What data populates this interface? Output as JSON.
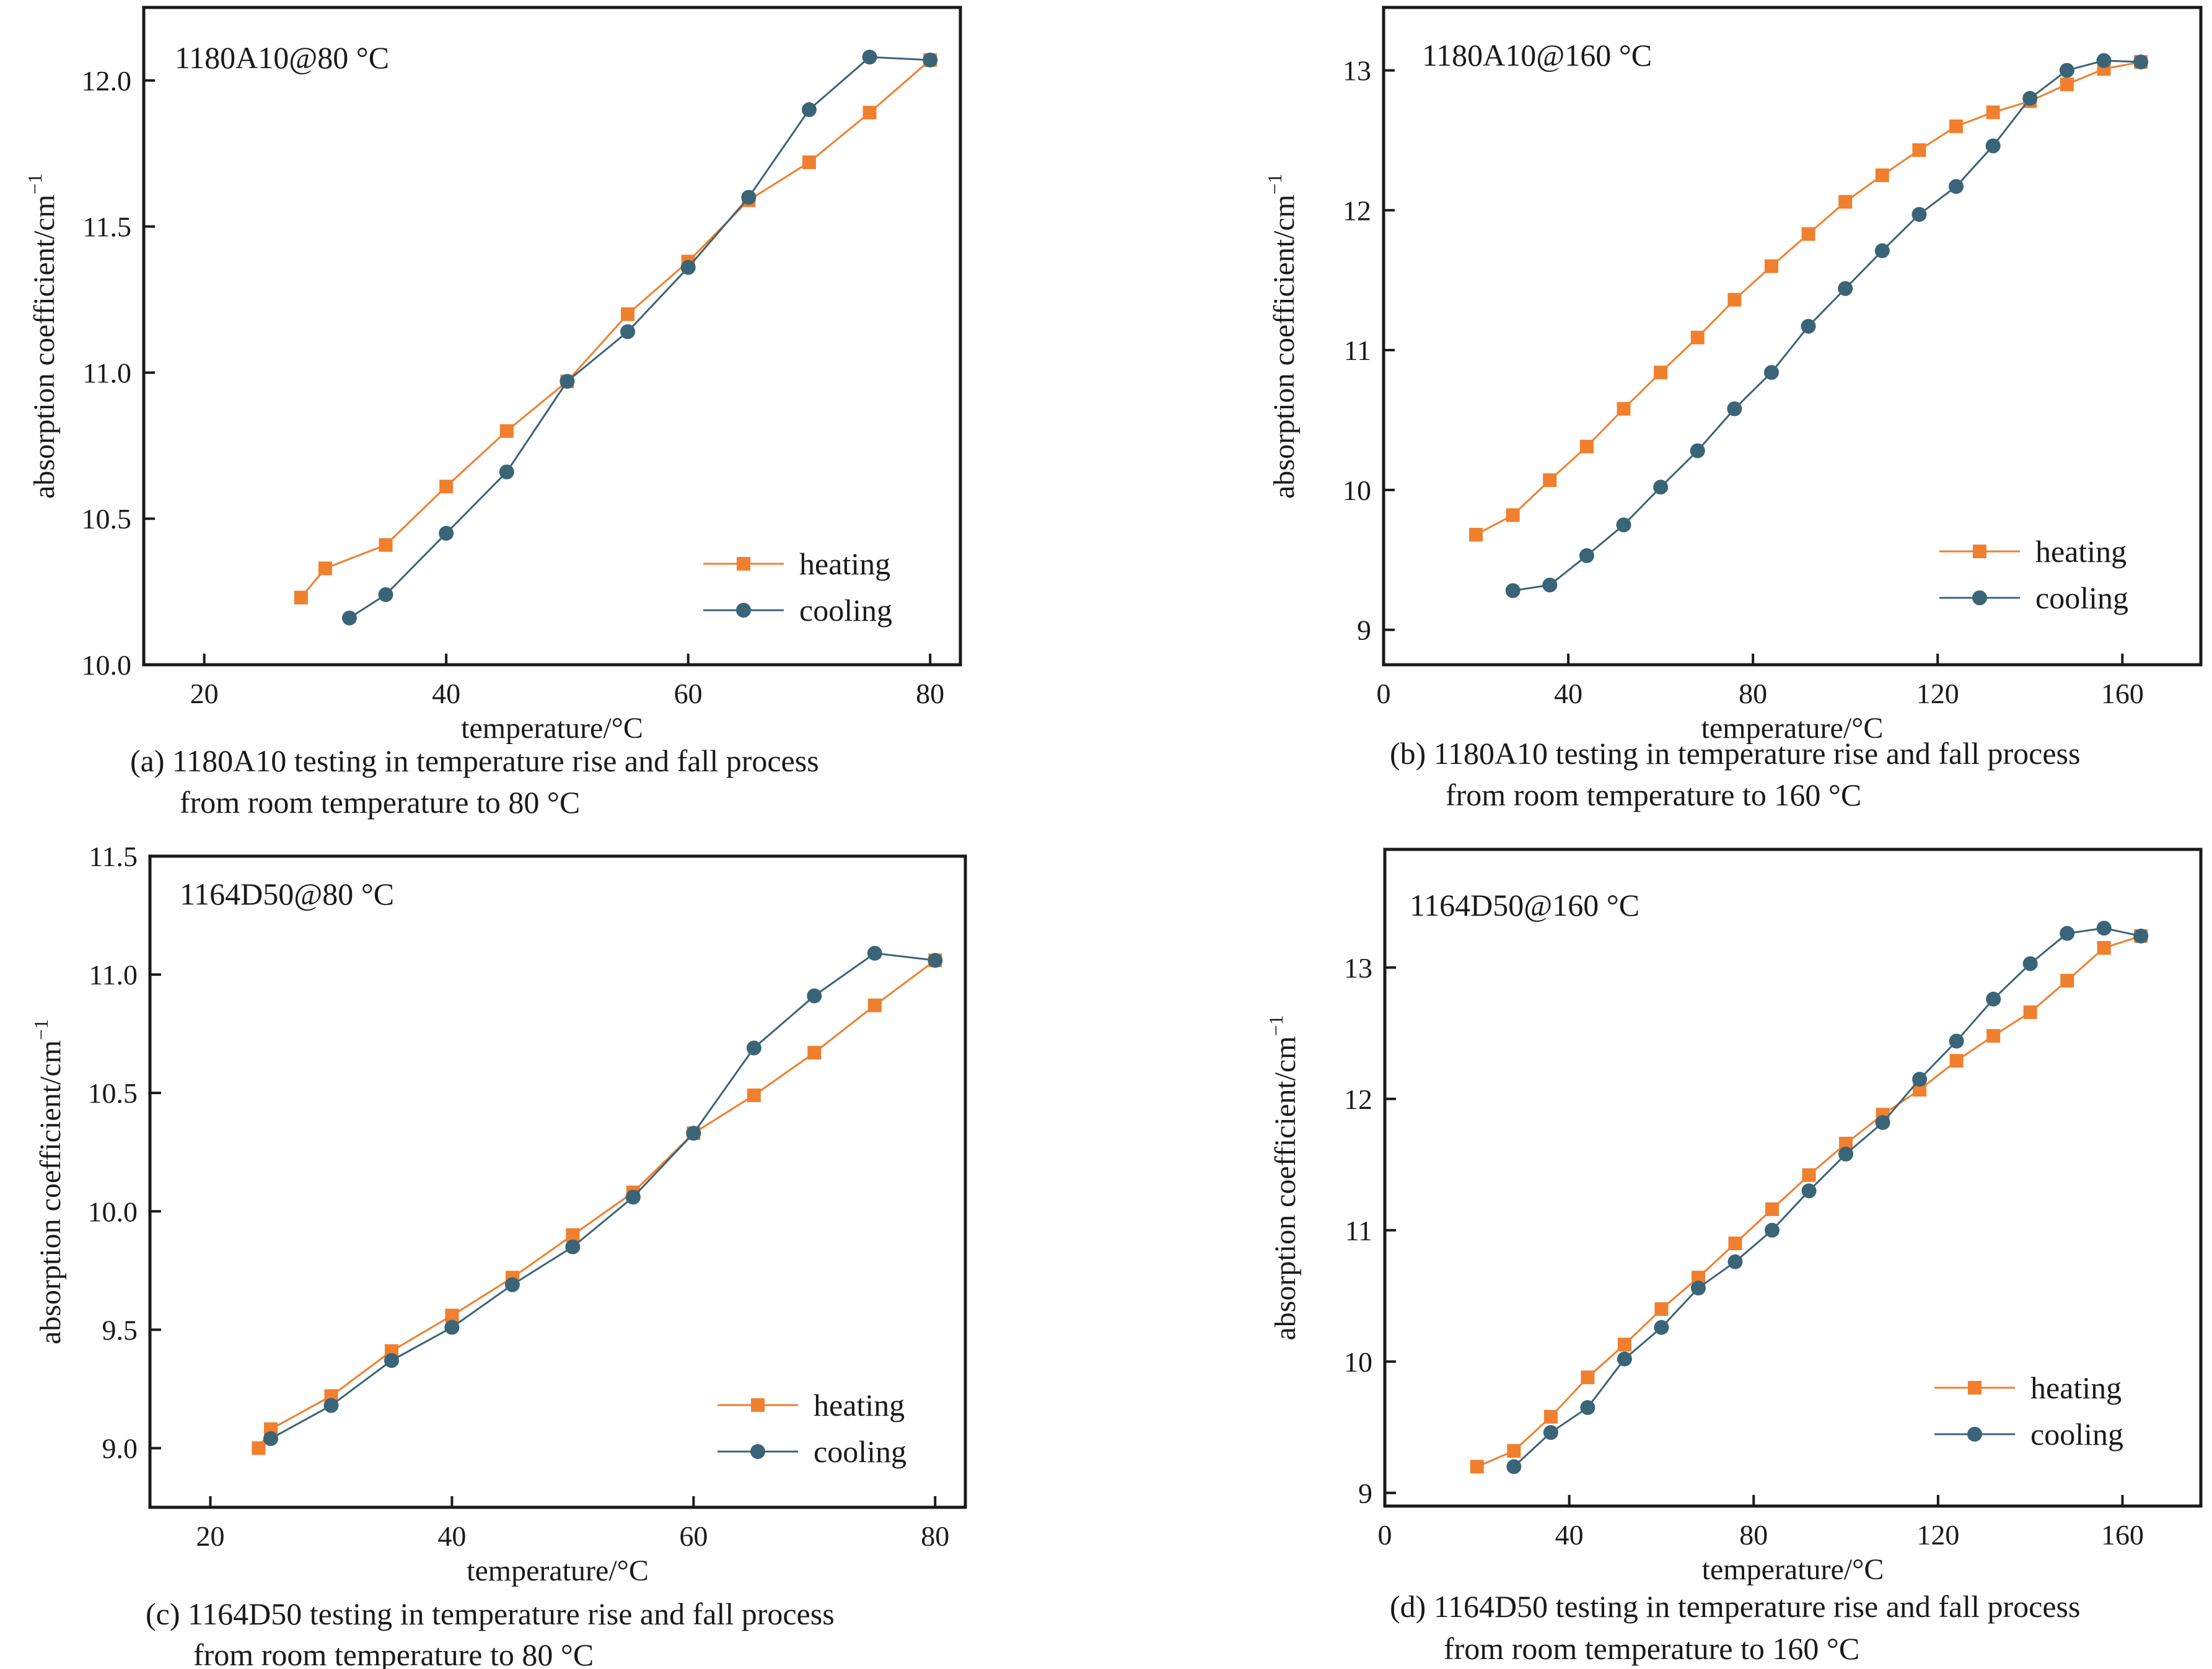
{
  "colors": {
    "heating": "#F07F2E",
    "cooling": "#3A6478",
    "axis": "#1a1a1a"
  },
  "chart_data": [
    {
      "type": "line",
      "label": "1180A10@80 °C",
      "xlabel": "temperature/°C",
      "ylabel": "absorption coefficient/cm",
      "ylabel_sup": "−1",
      "xlim": [
        15,
        82.5
      ],
      "ylim": [
        10.0,
        12.25
      ],
      "xticks": [
        20,
        40,
        60,
        80
      ],
      "xtick_labels": [
        "20",
        "40",
        "60",
        "80"
      ],
      "yticks": [
        10.0,
        10.5,
        11.0,
        11.5,
        12.0
      ],
      "ytick_labels": [
        "10.0",
        "10.5",
        "11.0",
        "11.5",
        "12.0"
      ],
      "legend_position": "bottom-right",
      "caption_line1": "(a) 1180A10 testing in temperature rise and fall process",
      "caption_line2": "from room temperature to 80 °C",
      "series": [
        {
          "name": "heating",
          "marker": "square",
          "x": [
            28,
            30,
            35,
            40,
            45,
            50,
            55,
            60,
            65,
            70,
            75,
            80
          ],
          "y": [
            10.23,
            10.33,
            10.41,
            10.61,
            10.8,
            10.97,
            11.2,
            11.38,
            11.59,
            11.72,
            11.89,
            12.07
          ]
        },
        {
          "name": "cooling",
          "marker": "circle",
          "x": [
            32,
            35,
            40,
            45,
            50,
            55,
            60,
            65,
            70,
            75,
            80
          ],
          "y": [
            10.16,
            10.24,
            10.45,
            10.66,
            10.97,
            11.14,
            11.36,
            11.6,
            11.9,
            12.08,
            12.07
          ]
        }
      ]
    },
    {
      "type": "line",
      "label": "1180A10@160 °C",
      "xlabel": "temperature/°C",
      "ylabel": "absorption coefficient/cm",
      "ylabel_sup": "−1",
      "xlim": [
        0,
        177
      ],
      "ylim": [
        8.75,
        13.45
      ],
      "xticks": [
        0,
        40,
        80,
        120,
        160
      ],
      "xtick_labels": [
        "0",
        "40",
        "80",
        "120",
        "160"
      ],
      "yticks": [
        9,
        10,
        11,
        12,
        13
      ],
      "ytick_labels": [
        "9",
        "10",
        "11",
        "12",
        "13"
      ],
      "legend_position": "bottom-right",
      "caption_line1": "(b) 1180A10 testing in temperature rise and fall process",
      "caption_line2": "from room temperature to 160 °C",
      "series": [
        {
          "name": "heating",
          "marker": "square",
          "x": [
            20,
            28,
            36,
            44,
            52,
            60,
            68,
            76,
            84,
            92,
            100,
            108,
            116,
            124,
            132,
            140,
            148,
            156,
            164
          ],
          "y": [
            9.68,
            9.82,
            10.07,
            10.31,
            10.58,
            10.84,
            11.09,
            11.36,
            11.6,
            11.83,
            12.06,
            12.25,
            12.43,
            12.6,
            12.7,
            12.78,
            12.9,
            13.01,
            13.06
          ]
        },
        {
          "name": "cooling",
          "marker": "circle",
          "x": [
            28,
            36,
            44,
            52,
            60,
            68,
            76,
            84,
            92,
            100,
            108,
            116,
            124,
            132,
            140,
            148,
            156,
            164
          ],
          "y": [
            9.28,
            9.32,
            9.53,
            9.75,
            10.02,
            10.28,
            10.58,
            10.84,
            11.17,
            11.44,
            11.71,
            11.97,
            12.17,
            12.46,
            12.8,
            13.0,
            13.07,
            13.06
          ]
        }
      ]
    },
    {
      "type": "line",
      "label": "1164D50@80 °C",
      "xlabel": "temperature/°C",
      "ylabel": "absorption coefficient/cm",
      "ylabel_sup": "−1",
      "xlim": [
        15,
        82.5
      ],
      "ylim": [
        8.75,
        11.5
      ],
      "xticks": [
        20,
        40,
        60,
        80
      ],
      "xtick_labels": [
        "20",
        "40",
        "60",
        "80"
      ],
      "yticks": [
        9.0,
        9.5,
        10.0,
        10.5,
        11.0,
        11.5
      ],
      "ytick_labels": [
        "9.0",
        "9.5",
        "10.0",
        "10.5",
        "11.0",
        "11.5"
      ],
      "legend_position": "bottom-right",
      "caption_line1": "(c) 1164D50 testing in temperature rise and fall process",
      "caption_line2": "from room temperature to 80 °C",
      "series": [
        {
          "name": "heating",
          "marker": "square",
          "x": [
            24,
            25,
            30,
            35,
            40,
            45,
            50,
            55,
            60,
            65,
            70,
            75,
            80
          ],
          "y": [
            9.0,
            9.08,
            9.22,
            9.41,
            9.56,
            9.72,
            9.9,
            10.08,
            10.33,
            10.49,
            10.67,
            10.87,
            11.06
          ]
        },
        {
          "name": "cooling",
          "marker": "circle",
          "x": [
            25,
            30,
            35,
            40,
            45,
            50,
            55,
            60,
            65,
            70,
            75,
            80
          ],
          "y": [
            9.04,
            9.18,
            9.37,
            9.51,
            9.69,
            9.85,
            10.06,
            10.33,
            10.69,
            10.91,
            11.09,
            11.06
          ]
        }
      ]
    },
    {
      "type": "line",
      "label": "1164D50@160 °C",
      "xlabel": "temperature/°C",
      "ylabel": "absorption coefficient/cm",
      "ylabel_sup": "−1",
      "xlim": [
        0,
        177
      ],
      "ylim": [
        8.9,
        13.9
      ],
      "xticks": [
        0,
        40,
        80,
        120,
        160
      ],
      "xtick_labels": [
        "0",
        "40",
        "80",
        "120",
        "160"
      ],
      "yticks": [
        9,
        10,
        11,
        12,
        13
      ],
      "ytick_labels": [
        "9",
        "10",
        "11",
        "12",
        "13"
      ],
      "legend_position": "bottom-right",
      "caption_line1": "(d) 1164D50 testing in temperature rise and fall process",
      "caption_line2": "from room temperature to 160 °C",
      "series": [
        {
          "name": "heating",
          "marker": "square",
          "x": [
            20,
            28,
            36,
            44,
            52,
            60,
            68,
            76,
            84,
            92,
            100,
            108,
            116,
            124,
            132,
            140,
            148,
            156,
            164
          ],
          "y": [
            9.2,
            9.32,
            9.58,
            9.88,
            10.13,
            10.4,
            10.64,
            10.9,
            11.16,
            11.42,
            11.66,
            11.88,
            12.07,
            12.29,
            12.48,
            12.66,
            12.9,
            13.15,
            13.24
          ]
        },
        {
          "name": "cooling",
          "marker": "circle",
          "x": [
            28,
            36,
            44,
            52,
            60,
            68,
            76,
            84,
            92,
            100,
            108,
            116,
            124,
            132,
            140,
            148,
            156,
            164
          ],
          "y": [
            9.2,
            9.46,
            9.65,
            10.02,
            10.26,
            10.56,
            10.76,
            11.0,
            11.3,
            11.58,
            11.82,
            12.15,
            12.44,
            12.76,
            13.03,
            13.26,
            13.3,
            13.24
          ]
        }
      ]
    }
  ]
}
